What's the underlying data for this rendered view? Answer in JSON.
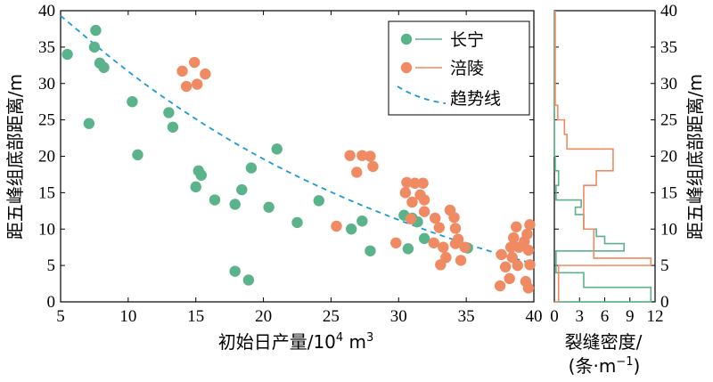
{
  "chart_data": [
    {
      "type": "scatter",
      "xlabel_parts": [
        "初始日产量/10",
        "4",
        " m",
        "3"
      ],
      "ylabel": "距五峰组底部距离/m",
      "xlim": [
        5,
        40
      ],
      "ylim": [
        0,
        40
      ],
      "xticks": [
        "5",
        "10",
        "15",
        "20",
        "25",
        "30",
        "35",
        "40"
      ],
      "yticks": [
        "0",
        "5",
        "10",
        "15",
        "20",
        "25",
        "30",
        "35",
        "40"
      ],
      "legend_position": "top-right",
      "colors": {
        "changning": "#5ab38a",
        "fuling": "#ef8a62",
        "trend": "#1a9ad6"
      },
      "series": [
        {
          "name": "长宁",
          "points": [
            [
              5.5,
              34
            ],
            [
              7.6,
              37.3
            ],
            [
              7.5,
              35
            ],
            [
              7.9,
              32.8
            ],
            [
              8.2,
              32.2
            ],
            [
              7.1,
              24.5
            ],
            [
              10.3,
              27.5
            ],
            [
              10.7,
              20.2
            ],
            [
              13.0,
              26
            ],
            [
              13.3,
              24
            ],
            [
              15.0,
              15.8
            ],
            [
              15.2,
              18
            ],
            [
              15.4,
              17.4
            ],
            [
              16.4,
              14
            ],
            [
              17.9,
              13.4
            ],
            [
              18.4,
              15.4
            ],
            [
              19.1,
              18.4
            ],
            [
              20.4,
              13
            ],
            [
              21.0,
              21
            ],
            [
              22.5,
              10.9
            ],
            [
              24.1,
              13.9
            ],
            [
              26.5,
              10
            ],
            [
              27.3,
              11.1
            ],
            [
              27.9,
              7
            ],
            [
              30.4,
              11.9
            ],
            [
              30.7,
              7.3
            ],
            [
              31.0,
              11.5
            ],
            [
              31.4,
              11
            ],
            [
              31.9,
              8.7
            ],
            [
              35.1,
              7.4
            ],
            [
              17.9,
              4.2
            ],
            [
              18.9,
              3
            ]
          ]
        },
        {
          "name": "涪陵",
          "points": [
            [
              14.0,
              31.7
            ],
            [
              14.3,
              29.6
            ],
            [
              14.9,
              32.9
            ],
            [
              15.1,
              29.9
            ],
            [
              15.7,
              31.3
            ],
            [
              25.4,
              10.4
            ],
            [
              26.4,
              20.1
            ],
            [
              26.9,
              17.8
            ],
            [
              27.3,
              20.1
            ],
            [
              27.9,
              20
            ],
            [
              28.1,
              18.6
            ],
            [
              29.8,
              8.1
            ],
            [
              30.6,
              16.4
            ],
            [
              30.5,
              15
            ],
            [
              31.0,
              13.7
            ],
            [
              30.9,
              11.4
            ],
            [
              31.2,
              16.3
            ],
            [
              31.8,
              16.3
            ],
            [
              31.6,
              14.7
            ],
            [
              31.9,
              12.4
            ],
            [
              31.9,
              14
            ],
            [
              32.6,
              8.1
            ],
            [
              32.7,
              11.5
            ],
            [
              33.0,
              10.2
            ],
            [
              33.1,
              5.1
            ],
            [
              33.3,
              7.5
            ],
            [
              33.5,
              6.1
            ],
            [
              33.8,
              12.6
            ],
            [
              34.1,
              11.6
            ],
            [
              34.2,
              10.1
            ],
            [
              34.4,
              8.6
            ],
            [
              34.6,
              5.7
            ],
            [
              34.9,
              7.5
            ],
            [
              34.2,
              8
            ],
            [
              37.5,
              2.2
            ],
            [
              37.6,
              6.5
            ],
            [
              37.9,
              4.8
            ],
            [
              38.2,
              3.2
            ],
            [
              38.4,
              6.1
            ],
            [
              38.3,
              7.5
            ],
            [
              38.5,
              8.8
            ],
            [
              38.7,
              10.3
            ],
            [
              38.8,
              5
            ],
            [
              38.9,
              7.5
            ],
            [
              39.3,
              8.3
            ],
            [
              39.4,
              2.8
            ],
            [
              39.5,
              9.3
            ],
            [
              39.6,
              7.1
            ],
            [
              39.7,
              10.6
            ],
            [
              39.7,
              5.1
            ],
            [
              39.6,
              1.9
            ]
          ]
        },
        {
          "name": "趋势线",
          "style": "dashed",
          "curve": [
            [
              5,
              39.3
            ],
            [
              10,
              31.5
            ],
            [
              15,
              25
            ],
            [
              20,
              19.5
            ],
            [
              25,
              15
            ],
            [
              30,
              11.2
            ],
            [
              35,
              7.9
            ],
            [
              40,
              5.2
            ]
          ]
        }
      ]
    },
    {
      "type": "histogram-step",
      "xlabel_lines": [
        "裂缝密度/",
        "(条·m",
        "−1",
        ")"
      ],
      "ylabel": "距五峰组底部距离/m",
      "xlim": [
        0,
        12
      ],
      "ylim": [
        0,
        40
      ],
      "xticks": [
        "0",
        "3",
        "6",
        "9",
        "12"
      ],
      "yticks": [
        "0",
        "5",
        "10",
        "15",
        "20",
        "25",
        "30",
        "35",
        "40"
      ],
      "series": [
        {
          "name": "长宁",
          "bins": [
            [
              0,
              1,
              11.5
            ],
            [
              1,
              2,
              11.5
            ],
            [
              2,
              3,
              3.5
            ],
            [
              3,
              4,
              3.5
            ],
            [
              4,
              5,
              0.2
            ],
            [
              5,
              6,
              0.2
            ],
            [
              6,
              7,
              0.2
            ],
            [
              7,
              8,
              8.3
            ],
            [
              8,
              9,
              6
            ],
            [
              9,
              10,
              5
            ],
            [
              10,
              11,
              3.5
            ],
            [
              11,
              12,
              3.5
            ],
            [
              12,
              13,
              2.5
            ],
            [
              13,
              14,
              3.2
            ],
            [
              14,
              15,
              0.2
            ],
            [
              15,
              16,
              0.2
            ],
            [
              16,
              17,
              0.5
            ],
            [
              17,
              18,
              0.5
            ],
            [
              18,
              19,
              0.1
            ],
            [
              19,
              20,
              0.1
            ],
            [
              20,
              40,
              0
            ]
          ]
        },
        {
          "name": "涪陵",
          "bins": [
            [
              0,
              3,
              0.5
            ],
            [
              3,
              5,
              0.5
            ],
            [
              5,
              6,
              11.5
            ],
            [
              6,
              7,
              4.7
            ],
            [
              7,
              8,
              4.7
            ],
            [
              8,
              9,
              4.7
            ],
            [
              9,
              10,
              4.7
            ],
            [
              10,
              11,
              3.5
            ],
            [
              11,
              12,
              3.5
            ],
            [
              12,
              13,
              3.5
            ],
            [
              13,
              14,
              3.5
            ],
            [
              14,
              16,
              3.5
            ],
            [
              16,
              17,
              5
            ],
            [
              17,
              18,
              5
            ],
            [
              18,
              19,
              7
            ],
            [
              19,
              20,
              7
            ],
            [
              20,
              21,
              7
            ],
            [
              21,
              22,
              1.5
            ],
            [
              22,
              23,
              1.5
            ],
            [
              23,
              25,
              1.2
            ],
            [
              25,
              27,
              0.4
            ],
            [
              27,
              29,
              0.1
            ],
            [
              29,
              40,
              0.1
            ]
          ]
        }
      ]
    }
  ]
}
